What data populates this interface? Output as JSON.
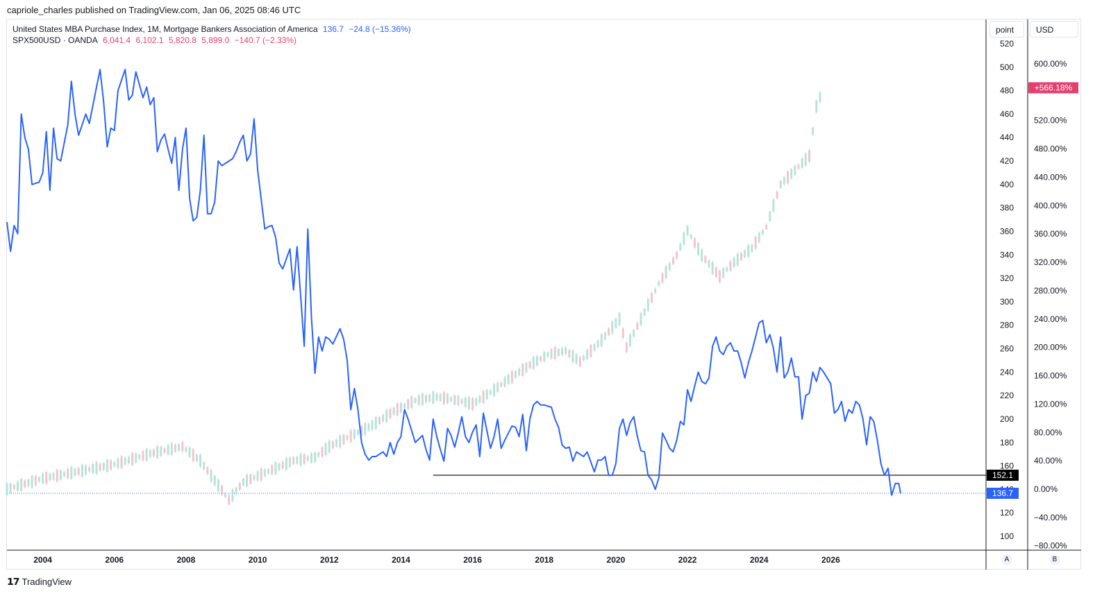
{
  "header": {
    "published": "capriole_charles published on TradingView.com, Jan 06, 2025 08:46 UTC"
  },
  "legend": {
    "mba": {
      "name": "United States MBA Purchase Index, 1M, Mortgage Bankers Association of America",
      "last": "136.7",
      "change": "−24.8 (−15.36%)",
      "color": "#2962ff"
    },
    "spx": {
      "name": "SPX500USD · OANDA",
      "open": "6,041.4",
      "high": "6,102.1",
      "low": "5,820.8",
      "close": "5,899.0",
      "change": "−140.7 (−2.33%)",
      "color": "#e2406f"
    }
  },
  "scales": {
    "left_unit": "point",
    "right_unit": "USD",
    "left_letter": "A",
    "right_letter": "B"
  },
  "footer": {
    "brand": "TradingView"
  },
  "chart_data": {
    "type": "line",
    "x_ticks": [
      "2004",
      "2006",
      "2008",
      "2010",
      "2012",
      "2014",
      "2016",
      "2018",
      "2020",
      "2022",
      "2024",
      "2026"
    ],
    "x_range": [
      2003.0,
      2027.95
    ],
    "y_left": {
      "label": "point",
      "ticks": [
        100,
        120,
        140,
        160,
        180,
        200,
        220,
        240,
        260,
        280,
        300,
        320,
        340,
        360,
        380,
        400,
        420,
        440,
        460,
        480,
        500,
        520
      ],
      "range": [
        95,
        522
      ]
    },
    "y_right": {
      "label": "USD",
      "ticks": [
        "−80.00%",
        "−40.00%",
        "0.00%",
        "40.00%",
        "80.00%",
        "120.00%",
        "160.00%",
        "200.00%",
        "240.00%",
        "280.00%",
        "320.00%",
        "360.00%",
        "400.00%",
        "440.00%",
        "480.00%",
        "520.00%",
        "600.00%"
      ],
      "range": [
        -80,
        600
      ]
    },
    "price_labels": [
      {
        "text": "152.1",
        "value": 152.1,
        "bg": "#000000"
      },
      {
        "text": "136.7",
        "value": 136.7,
        "bg": "#2962ff"
      },
      {
        "text": "+566.18%",
        "value": 566.18,
        "bg": "#e2406f"
      }
    ],
    "reference_line": {
      "value": 152.1,
      "from_x": 2014.9
    },
    "series": [
      {
        "name": "United States MBA Purchase Index",
        "color": "#2962ff",
        "points": [
          [
            2003.0,
            368
          ],
          [
            2003.1,
            343
          ],
          [
            2003.2,
            365
          ],
          [
            2003.3,
            358
          ],
          [
            2003.4,
            460
          ],
          [
            2003.5,
            440
          ],
          [
            2003.6,
            430
          ],
          [
            2003.7,
            400
          ],
          [
            2003.9,
            402
          ],
          [
            2004.0,
            410
          ],
          [
            2004.1,
            445
          ],
          [
            2004.2,
            395
          ],
          [
            2004.3,
            448
          ],
          [
            2004.4,
            422
          ],
          [
            2004.5,
            420
          ],
          [
            2004.7,
            451
          ],
          [
            2004.8,
            488
          ],
          [
            2004.9,
            460
          ],
          [
            2005.0,
            442
          ],
          [
            2005.2,
            460
          ],
          [
            2005.3,
            452
          ],
          [
            2005.5,
            483
          ],
          [
            2005.6,
            498
          ],
          [
            2005.7,
            470
          ],
          [
            2005.8,
            432
          ],
          [
            2005.9,
            448
          ],
          [
            2006.0,
            446
          ],
          [
            2006.1,
            480
          ],
          [
            2006.3,
            498
          ],
          [
            2006.4,
            472
          ],
          [
            2006.5,
            476
          ],
          [
            2006.6,
            496
          ],
          [
            2006.8,
            474
          ],
          [
            2006.9,
            483
          ],
          [
            2007.0,
            468
          ],
          [
            2007.1,
            474
          ],
          [
            2007.2,
            428
          ],
          [
            2007.3,
            438
          ],
          [
            2007.4,
            443
          ],
          [
            2007.5,
            430
          ],
          [
            2007.6,
            418
          ],
          [
            2007.7,
            440
          ],
          [
            2007.8,
            395
          ],
          [
            2007.9,
            430
          ],
          [
            2008.0,
            448
          ],
          [
            2008.1,
            388
          ],
          [
            2008.2,
            369
          ],
          [
            2008.3,
            372
          ],
          [
            2008.4,
            395
          ],
          [
            2008.5,
            442
          ],
          [
            2008.6,
            375
          ],
          [
            2008.7,
            375
          ],
          [
            2008.8,
            385
          ],
          [
            2008.9,
            420
          ],
          [
            2009.0,
            416
          ],
          [
            2009.2,
            420
          ],
          [
            2009.3,
            422
          ],
          [
            2009.4,
            428
          ],
          [
            2009.5,
            436
          ],
          [
            2009.6,
            442
          ],
          [
            2009.7,
            420
          ],
          [
            2009.8,
            426
          ],
          [
            2009.9,
            456
          ],
          [
            2010.0,
            412
          ],
          [
            2010.2,
            362
          ],
          [
            2010.3,
            364
          ],
          [
            2010.4,
            365
          ],
          [
            2010.5,
            355
          ],
          [
            2010.6,
            333
          ],
          [
            2010.7,
            328
          ],
          [
            2010.9,
            345
          ],
          [
            2011.0,
            310
          ],
          [
            2011.1,
            347
          ],
          [
            2011.2,
            305
          ],
          [
            2011.3,
            262
          ],
          [
            2011.4,
            362
          ],
          [
            2011.5,
            287
          ],
          [
            2011.6,
            239
          ],
          [
            2011.7,
            270
          ],
          [
            2011.8,
            258
          ],
          [
            2011.9,
            270
          ],
          [
            2012.0,
            268
          ],
          [
            2012.1,
            264
          ],
          [
            2012.3,
            277
          ],
          [
            2012.4,
            268
          ],
          [
            2012.5,
            250
          ],
          [
            2012.6,
            208
          ],
          [
            2012.7,
            226
          ],
          [
            2012.8,
            208
          ],
          [
            2012.9,
            180
          ],
          [
            2013.0,
            170
          ],
          [
            2013.1,
            165
          ],
          [
            2013.2,
            168
          ],
          [
            2013.3,
            168
          ],
          [
            2013.5,
            172
          ],
          [
            2013.6,
            168
          ],
          [
            2013.7,
            180
          ],
          [
            2013.8,
            170
          ],
          [
            2013.9,
            180
          ],
          [
            2014.0,
            185
          ],
          [
            2014.1,
            208
          ],
          [
            2014.2,
            200
          ],
          [
            2014.3,
            190
          ],
          [
            2014.4,
            180
          ],
          [
            2014.6,
            186
          ],
          [
            2014.7,
            174
          ],
          [
            2014.8,
            165
          ],
          [
            2014.9,
            200
          ],
          [
            2015.0,
            185
          ],
          [
            2015.1,
            174
          ],
          [
            2015.2,
            164
          ],
          [
            2015.3,
            192
          ],
          [
            2015.4,
            186
          ],
          [
            2015.5,
            176
          ],
          [
            2015.6,
            188
          ],
          [
            2015.7,
            202
          ],
          [
            2015.8,
            185
          ],
          [
            2015.9,
            180
          ],
          [
            2016.0,
            189
          ],
          [
            2016.1,
            195
          ],
          [
            2016.2,
            168
          ],
          [
            2016.3,
            205
          ],
          [
            2016.5,
            175
          ],
          [
            2016.6,
            185
          ],
          [
            2016.7,
            200
          ],
          [
            2016.8,
            175
          ],
          [
            2016.9,
            182
          ],
          [
            2017.0,
            188
          ],
          [
            2017.1,
            194
          ],
          [
            2017.2,
            193
          ],
          [
            2017.3,
            185
          ],
          [
            2017.4,
            204
          ],
          [
            2017.5,
            173
          ],
          [
            2017.6,
            200
          ],
          [
            2017.7,
            212
          ],
          [
            2017.8,
            215
          ],
          [
            2017.9,
            212
          ],
          [
            2018.0,
            212
          ],
          [
            2018.2,
            210
          ],
          [
            2018.3,
            200
          ],
          [
            2018.4,
            193
          ],
          [
            2018.5,
            178
          ],
          [
            2018.6,
            175
          ],
          [
            2018.7,
            176
          ],
          [
            2018.8,
            164
          ],
          [
            2018.9,
            172
          ],
          [
            2019.0,
            170
          ],
          [
            2019.1,
            168
          ],
          [
            2019.2,
            172
          ],
          [
            2019.4,
            155
          ],
          [
            2019.5,
            165
          ],
          [
            2019.6,
            165
          ],
          [
            2019.7,
            168
          ],
          [
            2019.8,
            152
          ],
          [
            2019.9,
            152
          ],
          [
            2020.0,
            162
          ],
          [
            2020.1,
            192
          ],
          [
            2020.2,
            200
          ],
          [
            2020.3,
            186
          ],
          [
            2020.4,
            197
          ],
          [
            2020.5,
            202
          ],
          [
            2020.6,
            185
          ],
          [
            2020.7,
            173
          ],
          [
            2020.8,
            172
          ],
          [
            2020.9,
            152
          ],
          [
            2021.0,
            148
          ],
          [
            2021.1,
            140
          ],
          [
            2021.2,
            150
          ],
          [
            2021.3,
            188
          ],
          [
            2021.4,
            182
          ],
          [
            2021.5,
            175
          ],
          [
            2021.6,
            172
          ],
          [
            2021.7,
            182
          ],
          [
            2021.8,
            198
          ],
          [
            2021.9,
            195
          ],
          [
            2022.0,
            225
          ],
          [
            2022.1,
            215
          ],
          [
            2022.2,
            228
          ],
          [
            2022.3,
            240
          ],
          [
            2022.4,
            232
          ],
          [
            2022.5,
            230
          ],
          [
            2022.6,
            235
          ],
          [
            2022.7,
            262
          ],
          [
            2022.8,
            270
          ],
          [
            2022.9,
            258
          ],
          [
            2023.0,
            255
          ],
          [
            2023.1,
            262
          ],
          [
            2023.2,
            265
          ],
          [
            2023.3,
            258
          ],
          [
            2023.4,
            258
          ],
          [
            2023.5,
            248
          ],
          [
            2023.6,
            235
          ],
          [
            2023.7,
            248
          ],
          [
            2023.8,
            258
          ],
          [
            2023.9,
            270
          ],
          [
            2024.0,
            282
          ],
          [
            2024.1,
            284
          ],
          [
            2024.2,
            265
          ],
          [
            2024.3,
            272
          ],
          [
            2024.4,
            260
          ],
          [
            2024.5,
            240
          ],
          [
            2024.6,
            270
          ],
          [
            2024.7,
            235
          ],
          [
            2024.8,
            240
          ],
          [
            2024.9,
            252
          ],
          [
            2025.0,
            236
          ],
          [
            2025.1,
            236
          ],
          [
            2025.2,
            200
          ],
          [
            2025.3,
            220
          ],
          [
            2025.4,
            222
          ],
          [
            2025.5,
            240
          ],
          [
            2025.6,
            232
          ],
          [
            2025.7,
            244
          ],
          [
            2025.8,
            240
          ],
          [
            2025.9,
            235
          ],
          [
            2026.0,
            230
          ],
          [
            2026.1,
            205
          ],
          [
            2026.2,
            208
          ],
          [
            2026.3,
            215
          ],
          [
            2026.4,
            198
          ],
          [
            2026.5,
            208
          ],
          [
            2026.6,
            205
          ],
          [
            2026.7,
            215
          ],
          [
            2026.8,
            212
          ],
          [
            2026.9,
            200
          ],
          [
            2027.0,
            178
          ],
          [
            2027.1,
            202
          ],
          [
            2027.2,
            198
          ],
          [
            2027.3,
            182
          ],
          [
            2027.4,
            162
          ],
          [
            2027.5,
            152
          ],
          [
            2027.6,
            158
          ],
          [
            2027.7,
            135
          ],
          [
            2027.8,
            145
          ],
          [
            2027.9,
            145
          ],
          [
            2027.95,
            136.7
          ]
        ]
      },
      {
        "name": "SPX500USD · OANDA",
        "color": "#e2406f",
        "points": [
          [
            2003.0,
            0
          ],
          [
            2004.0,
            15
          ],
          [
            2005.0,
            25
          ],
          [
            2006.0,
            35
          ],
          [
            2007.0,
            50
          ],
          [
            2007.9,
            60
          ],
          [
            2008.4,
            40
          ],
          [
            2008.9,
            5
          ],
          [
            2009.2,
            -15
          ],
          [
            2009.6,
            10
          ],
          [
            2010.3,
            25
          ],
          [
            2011.0,
            40
          ],
          [
            2011.6,
            45
          ],
          [
            2012.0,
            60
          ],
          [
            2012.6,
            75
          ],
          [
            2013.2,
            90
          ],
          [
            2013.8,
            110
          ],
          [
            2014.4,
            125
          ],
          [
            2015.0,
            130
          ],
          [
            2015.6,
            125
          ],
          [
            2016.0,
            120
          ],
          [
            2016.6,
            140
          ],
          [
            2017.0,
            155
          ],
          [
            2017.6,
            175
          ],
          [
            2018.1,
            190
          ],
          [
            2018.6,
            195
          ],
          [
            2019.0,
            180
          ],
          [
            2019.6,
            210
          ],
          [
            2020.1,
            240
          ],
          [
            2020.3,
            200
          ],
          [
            2020.8,
            250
          ],
          [
            2021.2,
            290
          ],
          [
            2021.7,
            330
          ],
          [
            2022.0,
            365
          ],
          [
            2022.4,
            330
          ],
          [
            2022.9,
            300
          ],
          [
            2023.3,
            320
          ],
          [
            2023.8,
            340
          ],
          [
            2024.2,
            370
          ],
          [
            2024.6,
            430
          ],
          [
            2025.0,
            450
          ],
          [
            2025.4,
            470
          ],
          [
            2025.6,
            540
          ],
          [
            2025.8,
            566
          ]
        ]
      }
    ]
  }
}
